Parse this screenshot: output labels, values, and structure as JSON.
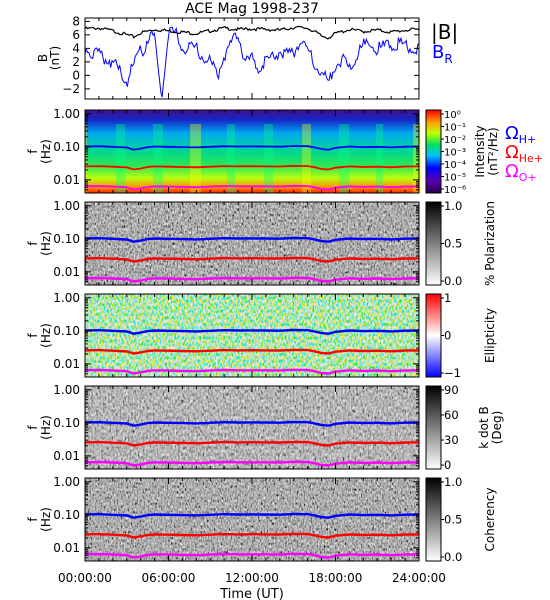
{
  "chart_data": {
    "type": "line+heatmap",
    "title": "ACE Mag 1998-237",
    "xlabel": "Time (UT)",
    "x_tick_labels": [
      "00:00:00",
      "06:00:00",
      "12:00:00",
      "18:00:00",
      "24:00:00"
    ],
    "x_range_hours": [
      0,
      24
    ],
    "line_panel": {
      "ylabel_top": "B",
      "ylabel_bottom": "(nT)",
      "yticks": [
        -2,
        0,
        2,
        4,
        6,
        8
      ],
      "ylim": [
        -3.5,
        8.5
      ],
      "series": [
        {
          "name": "|B|",
          "color": "#000000",
          "t": [
            0,
            1,
            2,
            2.5,
            3,
            3.5,
            4,
            5,
            6,
            7,
            8,
            9,
            10,
            11,
            12,
            13,
            14,
            15,
            16,
            16.5,
            17,
            17.5,
            18,
            19,
            20,
            21,
            22,
            23,
            24
          ],
          "values": [
            6.9,
            7.0,
            6.6,
            6.3,
            6.0,
            5.7,
            6.3,
            6.8,
            6.6,
            6.4,
            6.2,
            6.6,
            7.0,
            6.8,
            6.9,
            6.8,
            6.7,
            7.1,
            7.0,
            6.5,
            5.8,
            5.6,
            6.2,
            6.8,
            6.5,
            6.7,
            6.4,
            6.7,
            6.8
          ]
        },
        {
          "name": "B",
          "subscript": "R",
          "color": "#0000ff",
          "t": [
            0,
            0.5,
            1,
            1.5,
            2,
            2.5,
            3,
            3.5,
            3.8,
            4,
            4.2,
            4.5,
            5,
            5.3,
            5.5,
            6,
            6.5,
            7,
            7.5,
            8,
            8.5,
            9,
            9.3,
            9.6,
            10,
            10.5,
            11,
            11.5,
            12,
            12.5,
            13,
            13.5,
            14,
            14.5,
            15,
            15.5,
            16,
            16.5,
            17,
            17.5,
            18,
            18.5,
            19,
            19.5,
            20,
            20.5,
            21,
            21.5,
            22,
            22.5,
            23,
            23.5,
            24
          ],
          "values": [
            4.0,
            3.5,
            3.0,
            2.5,
            2.0,
            0.5,
            -1.0,
            1.5,
            2.5,
            4.0,
            3.5,
            5.5,
            5.8,
            0.0,
            -3.0,
            6.5,
            6.2,
            4.0,
            4.0,
            4.2,
            2.5,
            2.0,
            1.0,
            0.5,
            3.0,
            4.5,
            6.5,
            2.0,
            2.5,
            1.0,
            2.0,
            2.5,
            3.5,
            3.0,
            3.5,
            5.0,
            4.0,
            1.5,
            0.5,
            -1.0,
            1.5,
            2.5,
            1.0,
            3.0,
            4.5,
            4.5,
            4.0,
            4.2,
            4.5,
            4.8,
            4.5,
            4.0,
            3.8
          ]
        }
      ]
    },
    "spectral_panels": [
      {
        "ylabel_top": "f",
        "ylabel_bottom": "(Hz)",
        "colorbar_label": [
          "Intensity",
          "(nT²/Hz)"
        ],
        "colorbar_ticks": [
          "10⁰",
          "10⁻¹",
          "10⁻²",
          "10⁻³",
          "10⁻⁴",
          "10⁻⁵",
          "10⁻⁶"
        ],
        "colormap": "rainbow"
      },
      {
        "ylabel_top": "f",
        "ylabel_bottom": "(Hz)",
        "colorbar_label": [
          "% Polarization"
        ],
        "colorbar_ticks": [
          "1.0",
          "0.5",
          "0.0"
        ],
        "colormap": "gray"
      },
      {
        "ylabel_top": "f",
        "ylabel_bottom": "(Hz)",
        "colorbar_label": [
          "Ellipticity"
        ],
        "colorbar_ticks": [
          "1",
          "0",
          "−1"
        ],
        "colormap": "bwr"
      },
      {
        "ylabel_top": "f",
        "ylabel_bottom": "(Hz)",
        "colorbar_label": [
          "k dot B",
          "(Deg)"
        ],
        "colorbar_ticks": [
          "90",
          "60",
          "30",
          "0"
        ],
        "colormap": "gray"
      },
      {
        "ylabel_top": "f",
        "ylabel_bottom": "(Hz)",
        "colorbar_label": [
          "Coherency"
        ],
        "colorbar_ticks": [
          "1.0",
          "0.5",
          "0.0"
        ],
        "colormap": "gray"
      }
    ],
    "frequency_axis": {
      "scale": "log",
      "range_hz": [
        0.004,
        1.3
      ],
      "tick_labels": [
        "1.00",
        "0.10",
        "0.01"
      ],
      "tick_values": [
        1.0,
        0.1,
        0.01
      ]
    },
    "gyrofrequency_lines": [
      {
        "name": "Ω",
        "subscript": "H+",
        "color": "#0000ff",
        "t": [
          0,
          1,
          2,
          3,
          3.5,
          4,
          4.5,
          5,
          6,
          7,
          8,
          9,
          10,
          11,
          12,
          13,
          14,
          15,
          16,
          16.5,
          17,
          17.5,
          18,
          19,
          20,
          21,
          22,
          23,
          24
        ],
        "values": [
          0.102,
          0.104,
          0.1,
          0.095,
          0.082,
          0.088,
          0.098,
          0.102,
          0.1,
          0.098,
          0.096,
          0.1,
          0.104,
          0.102,
          0.103,
          0.102,
          0.101,
          0.106,
          0.104,
          0.096,
          0.085,
          0.082,
          0.093,
          0.102,
          0.098,
          0.1,
          0.096,
          0.101,
          0.102
        ]
      },
      {
        "name": "Ω",
        "subscript": "He+",
        "color": "#ff0000",
        "t": [
          0,
          1,
          2,
          3,
          3.5,
          4,
          4.5,
          5,
          6,
          7,
          8,
          9,
          10,
          11,
          12,
          13,
          14,
          15,
          16,
          16.5,
          17,
          17.5,
          18,
          19,
          20,
          21,
          22,
          23,
          24
        ],
        "values": [
          0.0255,
          0.026,
          0.025,
          0.0238,
          0.0205,
          0.022,
          0.0245,
          0.0255,
          0.025,
          0.0245,
          0.024,
          0.025,
          0.026,
          0.0255,
          0.0258,
          0.0255,
          0.0253,
          0.0265,
          0.026,
          0.024,
          0.0213,
          0.0205,
          0.0233,
          0.0255,
          0.0245,
          0.025,
          0.024,
          0.0253,
          0.0255
        ]
      },
      {
        "name": "Ω",
        "subscript": "O+",
        "color": "#ff00ff",
        "t": [
          0,
          1,
          2,
          3,
          3.5,
          4,
          4.5,
          5,
          6,
          7,
          8,
          9,
          10,
          11,
          12,
          13,
          14,
          15,
          16,
          16.5,
          17,
          17.5,
          18,
          19,
          20,
          21,
          22,
          23,
          24
        ],
        "values": [
          0.0064,
          0.0065,
          0.0063,
          0.006,
          0.0051,
          0.0055,
          0.0061,
          0.0064,
          0.0063,
          0.0061,
          0.006,
          0.0063,
          0.0065,
          0.0064,
          0.0064,
          0.0064,
          0.0063,
          0.0066,
          0.0065,
          0.006,
          0.0053,
          0.0051,
          0.0058,
          0.0064,
          0.0061,
          0.0063,
          0.006,
          0.0063,
          0.0064
        ]
      }
    ]
  }
}
